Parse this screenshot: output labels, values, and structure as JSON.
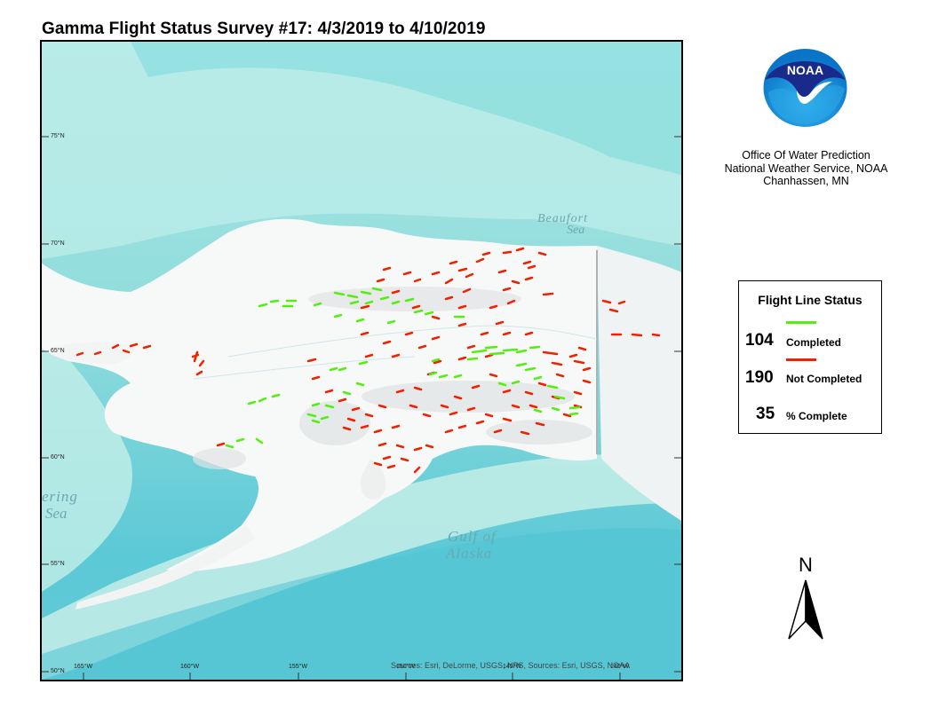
{
  "title": "Gamma Flight Status Survey #17: 4/3/2019 to 4/10/2019",
  "organization": {
    "line1": "Office Of Water Prediction",
    "line2": "National Weather Service, NOAA",
    "line3": "Chanhassen, MN",
    "logo_text": "NOAA"
  },
  "legend": {
    "title": "Flight Line Status",
    "completed_count": "104",
    "completed_label": "Completed",
    "completed_color": "#55ee11",
    "not_completed_count": "190",
    "not_completed_label": "Not Completed",
    "not_completed_color": "#ee2200",
    "percent": "35",
    "percent_label": "% Complete"
  },
  "map": {
    "labels": {
      "beaufort_1": "Beaufort",
      "beaufort_2": "Sea",
      "bering_1": "ering",
      "bering_2": "Sea",
      "gulf_1": "Gulf of",
      "gulf_2": "Alaska"
    },
    "latitude_labels": [
      "75°N",
      "70°N",
      "65°N",
      "60°N",
      "55°N",
      "50°N"
    ],
    "longitude_labels": [
      "165°W",
      "160°W",
      "155°W",
      "150°W",
      "145°W",
      "140°W"
    ],
    "attribution": "Sources: Esri, DeLorme, USGS, NPS, Sources: Esri, USGS, NOAA"
  },
  "north_arrow_label": "N"
}
